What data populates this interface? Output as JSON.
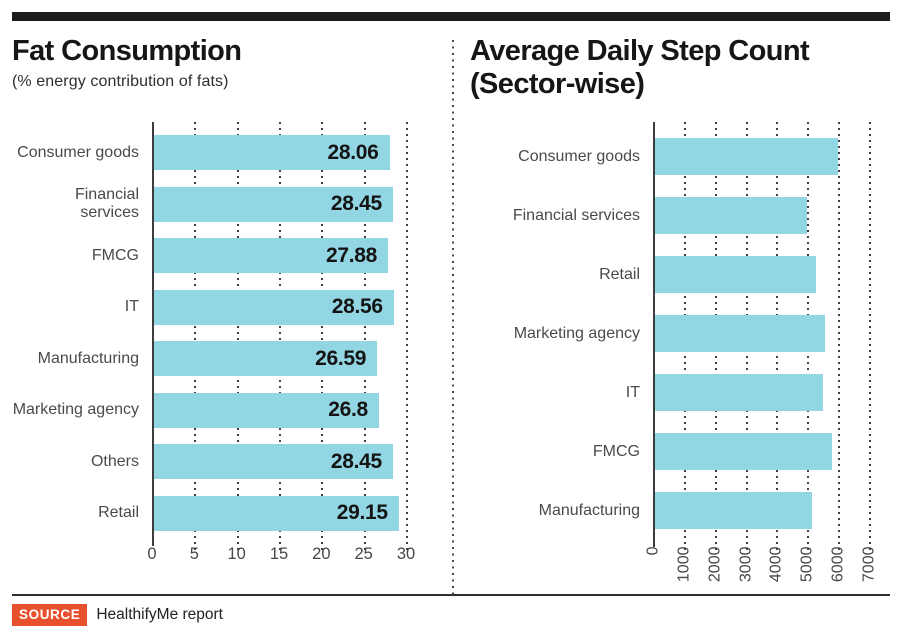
{
  "source": {
    "label": "SOURCE",
    "text": "HealthifyMe report",
    "badge_color": "#e8512d"
  },
  "chart_data": [
    {
      "type": "bar",
      "orientation": "horizontal",
      "title": "Fat Consumption",
      "subtitle": "(% energy contribution of fats)",
      "categories": [
        "Consumer goods",
        "Financial services",
        "FMCG",
        "IT",
        "Manufacturing",
        "Marketing agency",
        "Others",
        "Retail"
      ],
      "values": [
        28.06,
        28.45,
        27.88,
        28.56,
        26.59,
        26.8,
        28.45,
        29.15
      ],
      "value_labels": [
        "28.06",
        "28.45",
        "27.88",
        "28.56",
        "26.59",
        "26.8",
        "28.45",
        "29.15"
      ],
      "show_values": true,
      "xlim": [
        0,
        30
      ],
      "xticks": [
        0,
        5,
        10,
        15,
        20,
        25,
        30
      ],
      "xtick_rotation": 0,
      "grid": "dotted-vertical",
      "legend": "none",
      "bar_color": "#93d6e3"
    },
    {
      "type": "bar",
      "orientation": "horizontal",
      "title": "Average Daily Step Count\n(Sector-wise)",
      "subtitle": "",
      "categories": [
        "Consumer goods",
        "Financial services",
        "Retail",
        "Marketing agency",
        "IT",
        "FMCG",
        "Manufacturing"
      ],
      "values": [
        5980,
        4980,
        5270,
        5580,
        5500,
        5790,
        5140
      ],
      "value_labels": [],
      "show_values": false,
      "xlim": [
        0,
        7000
      ],
      "xticks": [
        0,
        1000,
        2000,
        3000,
        4000,
        5000,
        6000,
        7000
      ],
      "xtick_rotation": 90,
      "grid": "dotted-vertical",
      "legend": "none",
      "bar_color": "#93d6e3"
    }
  ]
}
